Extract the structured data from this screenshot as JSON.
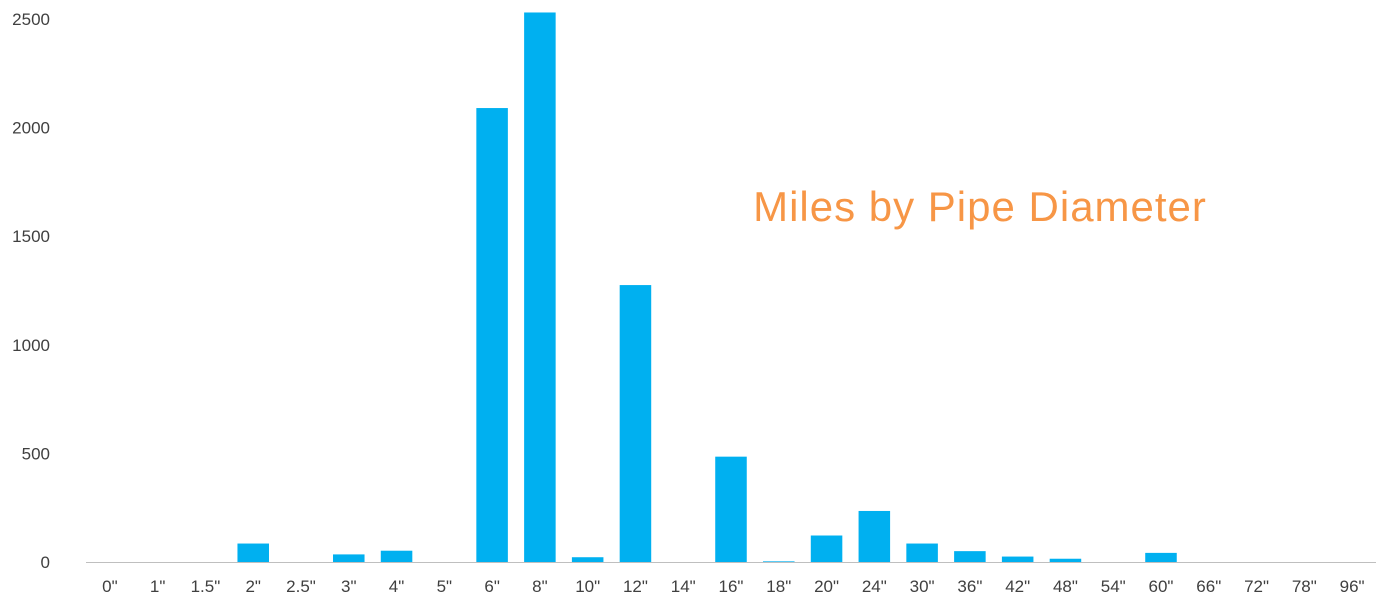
{
  "chart_data": {
    "type": "bar",
    "title": "Miles by Pipe Diameter",
    "xlabel": "",
    "ylabel": "",
    "ylim": [
      0,
      2500
    ],
    "yticks": [
      0,
      500,
      1000,
      1500,
      2000,
      2500
    ],
    "ytick_labels": [
      "0",
      "500",
      "1000",
      "1500",
      "2000",
      "2500"
    ],
    "grid": false,
    "legend": "none",
    "categories": [
      "0\"",
      "1\"",
      "1.5\"",
      "2\"",
      "2.5\"",
      "3\"",
      "4\"",
      "5\"",
      "6\"",
      "8\"",
      "10\"",
      "12\"",
      "14\"",
      "16\"",
      "18\"",
      "20\"",
      "24\"",
      "30\"",
      "36\"",
      "42\"",
      "48\"",
      "54\"",
      "60\"",
      "66\"",
      "72\"",
      "78\"",
      "96\""
    ],
    "values": [
      0,
      0,
      0,
      85,
      0,
      35,
      52,
      0,
      2090,
      2530,
      22,
      1275,
      0,
      485,
      3,
      122,
      235,
      85,
      50,
      25,
      15,
      0,
      42,
      0,
      0,
      0,
      0
    ],
    "colors": {
      "bar": "#00B0F0",
      "title": "#F79646",
      "axis": "#BFBFBF",
      "text": "#404040"
    }
  }
}
